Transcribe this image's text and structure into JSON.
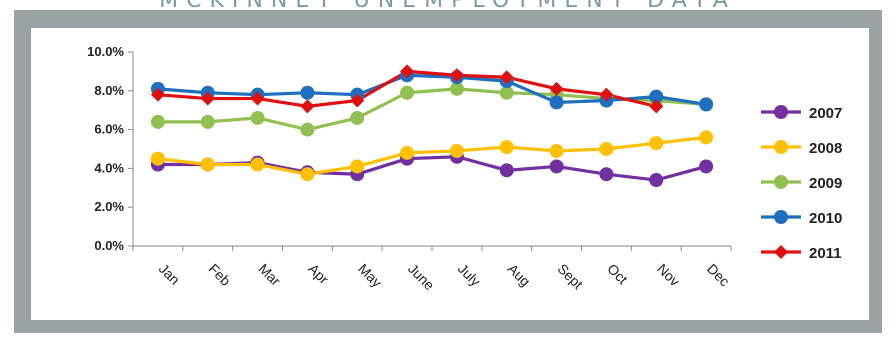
{
  "page_title": "MCKINNEY UNEMPLOYMENT DATA",
  "chart_data": {
    "type": "line",
    "title": "",
    "xlabel": "",
    "ylabel": "",
    "categories": [
      "Jan",
      "Feb",
      "Mar",
      "Apr",
      "May",
      "June",
      "July",
      "Aug",
      "Sept",
      "Oct",
      "Nov",
      "Dec"
    ],
    "ylim": [
      0,
      10
    ],
    "y_ticks": [
      "0.0%",
      "2.0%",
      "4.0%",
      "6.0%",
      "8.0%",
      "10.0%"
    ],
    "grid": false,
    "legend_position": "right",
    "series": [
      {
        "name": "2007",
        "color": "#7030a0",
        "marker": "circle",
        "values": [
          4.2,
          4.2,
          4.3,
          3.8,
          3.7,
          4.5,
          4.6,
          3.9,
          4.1,
          3.7,
          3.4,
          4.1
        ]
      },
      {
        "name": "2008",
        "color": "#ffc000",
        "marker": "circle",
        "values": [
          4.5,
          4.2,
          4.2,
          3.7,
          4.1,
          4.8,
          4.9,
          5.1,
          4.9,
          5.0,
          5.3,
          5.6
        ]
      },
      {
        "name": "2009",
        "color": "#92c050",
        "marker": "circle",
        "values": [
          6.4,
          6.4,
          6.6,
          6.0,
          6.6,
          7.9,
          8.1,
          7.9,
          7.8,
          7.6,
          7.5,
          7.3
        ]
      },
      {
        "name": "2010",
        "color": "#1f6fc0",
        "marker": "circle",
        "values": [
          8.1,
          7.9,
          7.8,
          7.9,
          7.8,
          8.8,
          8.7,
          8.5,
          7.4,
          7.5,
          7.7,
          7.3
        ]
      },
      {
        "name": "2011",
        "color": "#e01010",
        "marker": "diamond",
        "values": [
          7.8,
          7.6,
          7.6,
          7.2,
          7.5,
          9.0,
          8.8,
          8.7,
          8.1,
          7.8,
          7.2,
          null
        ]
      }
    ]
  }
}
